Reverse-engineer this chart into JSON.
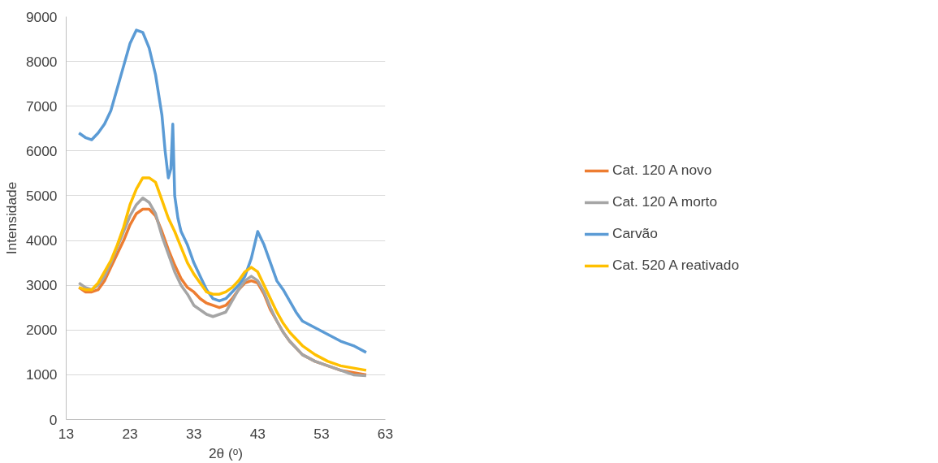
{
  "chart_data": {
    "type": "line",
    "xlabel": "2θ (ᵒ)",
    "ylabel": "Intensidade",
    "xlim": [
      13,
      63
    ],
    "xticks": [
      13,
      23,
      33,
      43,
      53,
      63
    ],
    "ylim": [
      0,
      9000
    ],
    "yticks": [
      0,
      1000,
      2000,
      3000,
      4000,
      5000,
      6000,
      7000,
      8000,
      9000
    ],
    "grid": "y",
    "legend": "right",
    "marker": "none",
    "line_style": "solid",
    "x": [
      15,
      16,
      17,
      18,
      19,
      20,
      21,
      22,
      23,
      24,
      25,
      26,
      27,
      28,
      29,
      30,
      31,
      32,
      33,
      34,
      35,
      36,
      37,
      38,
      39,
      40,
      41,
      42,
      43,
      44,
      45,
      46,
      47,
      48,
      49,
      50,
      52,
      54,
      56,
      58,
      60
    ],
    "series": [
      {
        "name": "Cat. 120 A novo",
        "color": "#ed7d31",
        "values": [
          2950,
          2850,
          2850,
          2900,
          3100,
          3400,
          3700,
          4000,
          4350,
          4600,
          4700,
          4700,
          4550,
          4200,
          3800,
          3450,
          3150,
          2950,
          2850,
          2700,
          2600,
          2550,
          2500,
          2550,
          2700,
          2900,
          3050,
          3100,
          3050,
          2800,
          2450,
          2200,
          1950,
          1750,
          1600,
          1450,
          1300,
          1200,
          1100,
          1050,
          1000
        ]
      },
      {
        "name": "Cat. 120 A morto",
        "color": "#a5a5a5",
        "values": [
          3050,
          2950,
          2900,
          3000,
          3200,
          3500,
          3850,
          4200,
          4550,
          4800,
          4950,
          4850,
          4600,
          4100,
          3700,
          3300,
          3000,
          2800,
          2550,
          2450,
          2350,
          2300,
          2350,
          2400,
          2650,
          2900,
          3100,
          3200,
          3100,
          2850,
          2500,
          2200,
          1950,
          1750,
          1600,
          1450,
          1300,
          1200,
          1100,
          1000,
          980
        ]
      },
      {
        "name": "Carvão",
        "color": "#5b9bd5",
        "x": [
          15,
          16,
          17,
          18,
          19,
          20,
          21,
          22,
          23,
          24,
          25,
          26,
          27,
          28,
          28.5,
          29,
          29.4,
          29.7,
          30,
          30.5,
          31,
          32,
          33,
          34,
          35,
          36,
          37,
          38,
          39,
          40,
          41,
          42,
          43,
          44,
          45,
          46,
          47,
          48,
          49,
          50,
          52,
          54,
          56,
          58,
          60
        ],
        "values": [
          6400,
          6300,
          6250,
          6400,
          6600,
          6900,
          7400,
          7900,
          8400,
          8700,
          8650,
          8300,
          7700,
          6800,
          6000,
          5400,
          5600,
          6600,
          5000,
          4500,
          4200,
          3900,
          3500,
          3200,
          2900,
          2700,
          2650,
          2700,
          2850,
          3000,
          3200,
          3600,
          4200,
          3900,
          3500,
          3100,
          2900,
          2650,
          2400,
          2200,
          2050,
          1900,
          1750,
          1650,
          1500
        ]
      },
      {
        "name": "Cat. 520 A reativado",
        "color": "#ffc000",
        "values": [
          2950,
          2900,
          2900,
          3050,
          3300,
          3550,
          3900,
          4300,
          4800,
          5150,
          5400,
          5400,
          5300,
          4900,
          4500,
          4200,
          3850,
          3500,
          3250,
          3050,
          2850,
          2800,
          2800,
          2850,
          2950,
          3100,
          3300,
          3400,
          3300,
          3000,
          2700,
          2400,
          2150,
          1950,
          1800,
          1650,
          1450,
          1300,
          1200,
          1150,
          1100
        ]
      }
    ]
  }
}
